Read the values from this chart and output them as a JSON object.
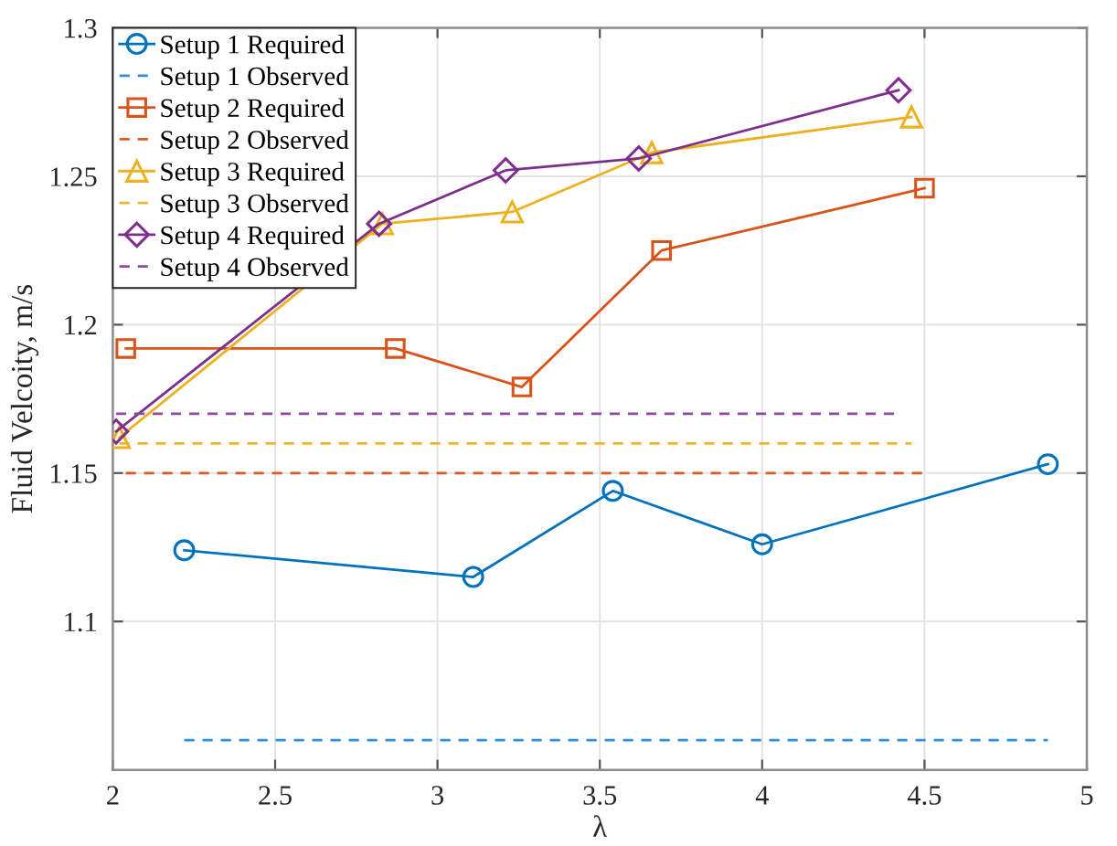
{
  "chart_data": {
    "type": "line",
    "xlabel": "λ",
    "ylabel": "Fluid Velcoity, m/s",
    "xlim": [
      2,
      5
    ],
    "ylim": [
      1.05,
      1.3
    ],
    "xticks": [
      2,
      2.5,
      3,
      3.5,
      4,
      4.5,
      5
    ],
    "yticks": [
      1.1,
      1.15,
      1.2,
      1.25,
      1.3
    ],
    "grid": true,
    "legend": "top left",
    "series": [
      {
        "name": "Setup 1 Required",
        "color": "#0072bd",
        "marker": "circle",
        "line_style": "solid",
        "x": [
          2.22,
          3.11,
          3.54,
          4.0,
          4.88
        ],
        "values": [
          1.124,
          1.115,
          1.144,
          1.126,
          1.153
        ]
      },
      {
        "name": "Setup 1 Observed",
        "color": "#2f8fd8",
        "marker": "none",
        "line_style": "dashed",
        "x": [
          2.22,
          4.88
        ],
        "values": [
          1.06,
          1.06
        ]
      },
      {
        "name": "Setup 2 Required",
        "color": "#d95319",
        "marker": "square",
        "line_style": "solid",
        "x": [
          2.04,
          2.87,
          3.26,
          3.69,
          4.5
        ],
        "values": [
          1.192,
          1.192,
          1.179,
          1.225,
          1.246
        ]
      },
      {
        "name": "Setup 2 Observed",
        "color": "#de5a22",
        "marker": "none",
        "line_style": "dashed",
        "x": [
          2.04,
          4.5
        ],
        "values": [
          1.15,
          1.15
        ]
      },
      {
        "name": "Setup 3 Required",
        "color": "#edb120",
        "marker": "triangle",
        "line_style": "solid",
        "x": [
          2.02,
          2.83,
          3.23,
          3.66,
          4.46
        ],
        "values": [
          1.162,
          1.234,
          1.238,
          1.258,
          1.27
        ]
      },
      {
        "name": "Setup 3 Observed",
        "color": "#efb52a",
        "marker": "none",
        "line_style": "dashed",
        "x": [
          2.02,
          4.46
        ],
        "values": [
          1.16,
          1.16
        ]
      },
      {
        "name": "Setup 4 Required",
        "color": "#7e2f8e",
        "marker": "diamond",
        "line_style": "solid",
        "x": [
          2.01,
          2.82,
          3.21,
          3.62,
          4.42
        ],
        "values": [
          1.164,
          1.234,
          1.252,
          1.256,
          1.279
        ]
      },
      {
        "name": "Setup 4 Observed",
        "color": "#8e4a9e",
        "marker": "none",
        "line_style": "dashed",
        "x": [
          2.01,
          4.42
        ],
        "values": [
          1.17,
          1.17
        ]
      }
    ]
  }
}
